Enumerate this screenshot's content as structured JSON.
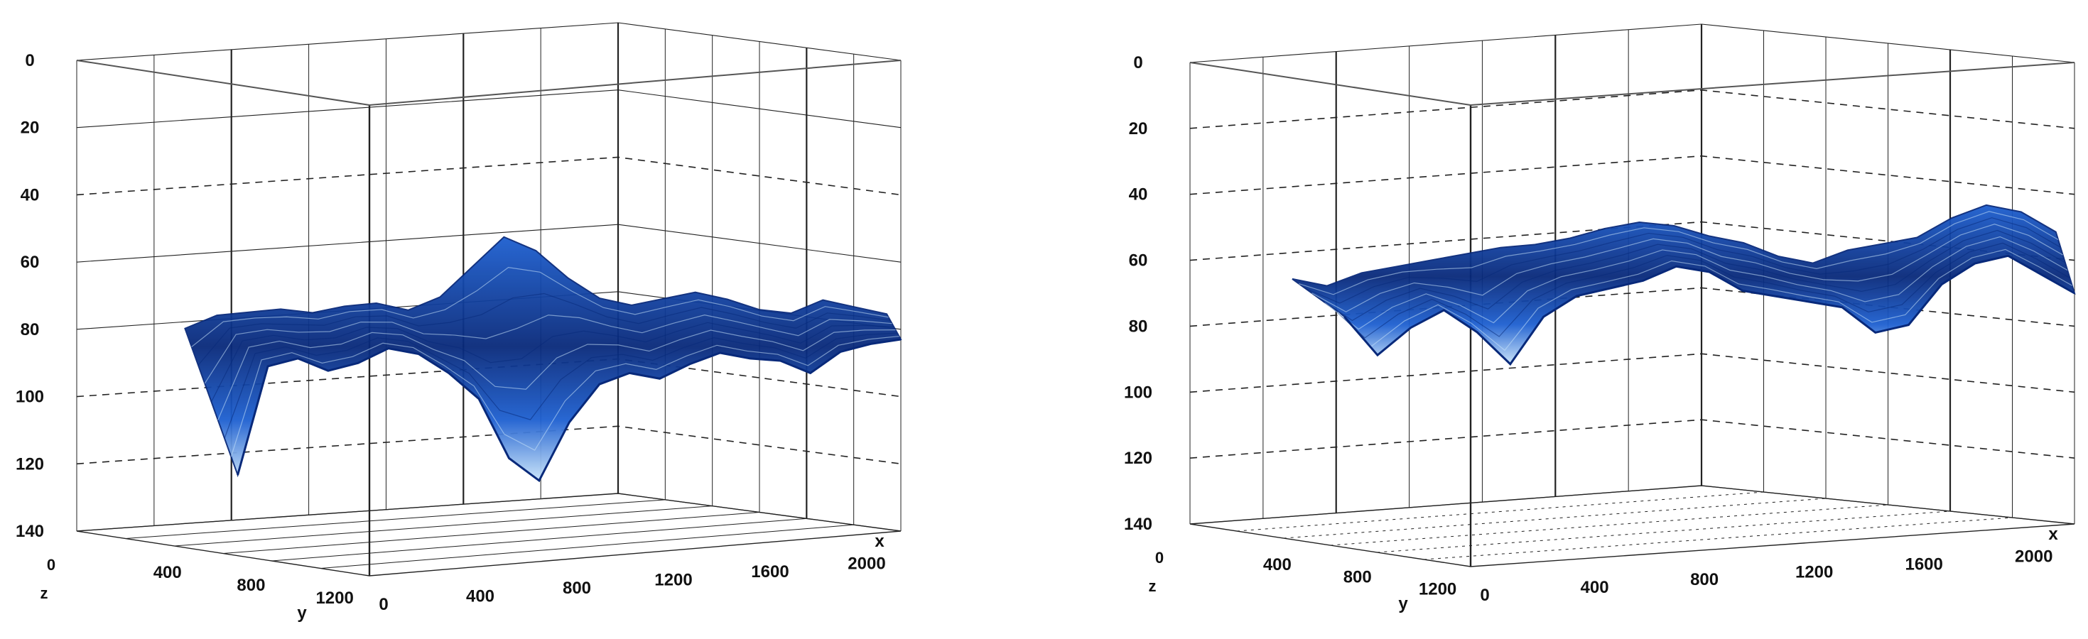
{
  "colors": {
    "surface_dark": "#08297a",
    "surface_mid": "#1d5fd0",
    "surface_light": "#c9e4fa",
    "grid": "#222222",
    "background": "#ffffff"
  },
  "chart_data": [
    {
      "type": "surface",
      "title": "",
      "axes": {
        "x": {
          "label": "x",
          "ticks": [
            "0",
            "400",
            "800",
            "1200",
            "1600",
            "2000"
          ],
          "range": [
            0,
            2200
          ]
        },
        "y": {
          "label": "y",
          "ticks": [
            "400",
            "800",
            "1200"
          ],
          "range": [
            0,
            1400
          ]
        },
        "z": {
          "label": "z",
          "ticks": [
            "0",
            "20",
            "40",
            "60",
            "80",
            "100",
            "120",
            "140"
          ],
          "range": [
            0,
            140
          ],
          "inverted": true,
          "corner_tick": "0"
        }
      },
      "grid": true,
      "front_profile": {
        "x": [
          0,
          100,
          200,
          300,
          400,
          500,
          600,
          700,
          800,
          900,
          1000,
          1100,
          1200,
          1300,
          1400,
          1500,
          1600,
          1700,
          1800,
          1900,
          2000,
          2100,
          2200
        ],
        "z": [
          116,
          84,
          82,
          86,
          84,
          80,
          82,
          88,
          96,
          114,
          121,
          104,
          93,
          90,
          92,
          88,
          85,
          87,
          88,
          92,
          86,
          84,
          83
        ]
      },
      "back_profile": {
        "x": [
          0,
          100,
          200,
          300,
          400,
          500,
          600,
          700,
          800,
          900,
          1000,
          1100,
          1200,
          1300,
          1400,
          1500,
          1600,
          1700,
          1800,
          1900,
          2000,
          2100,
          2200
        ],
        "z": [
          82,
          78,
          77,
          76,
          77,
          75,
          74,
          76,
          72,
          63,
          54,
          58,
          66,
          72,
          74,
          72,
          70,
          72,
          75,
          76,
          72,
          74,
          76
        ]
      }
    },
    {
      "type": "surface",
      "title": "",
      "axes": {
        "x": {
          "label": "x",
          "ticks": [
            "0",
            "400",
            "800",
            "1200",
            "1600",
            "2000"
          ],
          "range": [
            0,
            2200
          ]
        },
        "y": {
          "label": "y",
          "ticks": [
            "400",
            "800",
            "1200"
          ],
          "range": [
            0,
            1400
          ]
        },
        "z": {
          "label": "z",
          "ticks": [
            "0",
            "20",
            "40",
            "60",
            "80",
            "100",
            "120",
            "140"
          ],
          "range": [
            0,
            140
          ],
          "inverted": true,
          "corner_tick": "0"
        }
      },
      "grid": true,
      "front_profile": {
        "x": [
          0,
          100,
          200,
          300,
          400,
          500,
          600,
          700,
          800,
          900,
          1000,
          1100,
          1200,
          1300,
          1400,
          1500,
          1600,
          1700,
          1800,
          1900,
          2000,
          2100,
          2200
        ],
        "z": [
          70,
          82,
          74,
          69,
          76,
          86,
          72,
          66,
          64,
          62,
          58,
          60,
          66,
          68,
          70,
          72,
          80,
          78,
          66,
          60,
          58,
          64,
          70
        ]
      },
      "back_profile": {
        "x": [
          0,
          100,
          200,
          300,
          400,
          500,
          600,
          700,
          800,
          900,
          1000,
          1100,
          1200,
          1300,
          1400,
          1500,
          1600,
          1700,
          1800,
          1900,
          2000,
          2100,
          2200
        ],
        "z": [
          68,
          70,
          66,
          64,
          62,
          60,
          58,
          57,
          55,
          52,
          50,
          51,
          54,
          56,
          60,
          62,
          58,
          56,
          54,
          48,
          44,
          46,
          52
        ]
      }
    }
  ]
}
